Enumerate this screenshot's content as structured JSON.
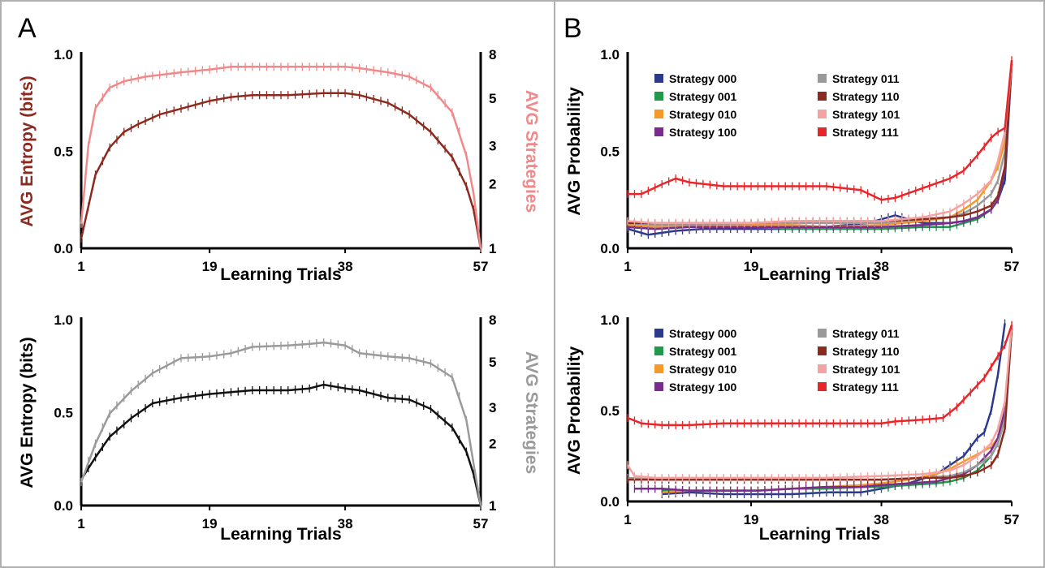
{
  "panel_labels": [
    "A",
    "B"
  ],
  "colors": {
    "entropy_red": "#8b2a1f",
    "strategies_pink": "#f08a8a",
    "entropy_black": "#111111",
    "strategies_gray": "#9a9a9a",
    "border": "#b0b0b0"
  },
  "chart_data": [
    {
      "type": "line",
      "panel": "A",
      "xlabel": "Learning Trials",
      "ylabel": "AVG Entropy (bits)",
      "ylabel_right": "AVG Strategies",
      "xlim": [
        1,
        57
      ],
      "ylim": [
        0,
        1
      ],
      "ylim_right": [
        1,
        8
      ],
      "right_scale": "log2",
      "x_ticks": [
        "1",
        "19",
        "38",
        "57"
      ],
      "y_ticks": [
        "0.0",
        "0.5",
        "1.0"
      ],
      "y_right_ticks": [
        "1",
        "2",
        "3",
        "5",
        "8"
      ],
      "error_bars": true,
      "series": [
        {
          "axis": "left",
          "color": "#8b2a1f",
          "x": [
            1,
            3,
            5,
            7,
            9,
            12,
            15,
            19,
            22,
            25,
            30,
            35,
            38,
            40,
            44,
            47,
            50,
            53,
            55,
            56,
            57
          ],
          "y": [
            0.05,
            0.38,
            0.52,
            0.6,
            0.64,
            0.69,
            0.72,
            0.76,
            0.78,
            0.79,
            0.79,
            0.8,
            0.8,
            0.79,
            0.75,
            0.69,
            0.6,
            0.47,
            0.32,
            0.2,
            0.0
          ]
        },
        {
          "axis": "right",
          "color": "#f08a8a",
          "x": [
            1,
            2,
            3,
            5,
            7,
            10,
            15,
            19,
            22,
            25,
            30,
            35,
            38,
            40,
            44,
            47,
            50,
            53,
            55,
            56,
            57
          ],
          "y": [
            1.3,
            3.0,
            4.5,
            5.6,
            6.0,
            6.3,
            6.6,
            6.8,
            7.0,
            7.0,
            7.0,
            7.0,
            7.0,
            6.9,
            6.6,
            6.3,
            5.6,
            4.3,
            2.7,
            1.8,
            1.0
          ]
        }
      ]
    },
    {
      "type": "line",
      "panel": "A-bottom",
      "xlabel": "Learning Trials",
      "ylabel": "AVG Entropy (bits)",
      "ylabel_right": "AVG Strategies",
      "xlim": [
        1,
        57
      ],
      "ylim": [
        0,
        1
      ],
      "ylim_right": [
        1,
        8
      ],
      "right_scale": "log2",
      "x_ticks": [
        "1",
        "19",
        "38",
        "57"
      ],
      "y_ticks": [
        "0.0",
        "0.5",
        "1.0"
      ],
      "y_right_ticks": [
        "1",
        "2",
        "3",
        "5",
        "8"
      ],
      "error_bars": true,
      "series": [
        {
          "axis": "left",
          "color": "#111111",
          "x": [
            1,
            3,
            5,
            8,
            11,
            15,
            19,
            22,
            25,
            30,
            33,
            35,
            38,
            40,
            44,
            47,
            50,
            53,
            55,
            56,
            57
          ],
          "y": [
            0.14,
            0.26,
            0.37,
            0.47,
            0.55,
            0.58,
            0.6,
            0.61,
            0.62,
            0.62,
            0.63,
            0.65,
            0.63,
            0.62,
            0.58,
            0.57,
            0.52,
            0.42,
            0.29,
            0.17,
            0.0
          ]
        },
        {
          "axis": "right",
          "color": "#9a9a9a",
          "x": [
            1,
            3,
            5,
            8,
            11,
            15,
            19,
            22,
            25,
            30,
            33,
            35,
            38,
            40,
            44,
            47,
            50,
            53,
            55,
            56,
            57
          ],
          "y": [
            1.3,
            2.0,
            2.8,
            3.6,
            4.4,
            5.2,
            5.3,
            5.5,
            5.9,
            6.0,
            6.1,
            6.2,
            6.0,
            5.5,
            5.3,
            5.2,
            4.9,
            4.2,
            2.6,
            1.6,
            1.0
          ]
        }
      ]
    },
    {
      "type": "line",
      "panel": "B",
      "xlabel": "Learning Trials",
      "ylabel": "AVG Probability",
      "xlim": [
        1,
        57
      ],
      "ylim": [
        0,
        1
      ],
      "x_ticks": [
        "1",
        "19",
        "38",
        "57"
      ],
      "y_ticks": [
        "0.0",
        "0.5",
        "1.0"
      ],
      "error_bars": true,
      "series": [
        {
          "name": "Strategy 000",
          "color": "#2b3a8c",
          "x": [
            1,
            4,
            8,
            12,
            19,
            25,
            30,
            36,
            40,
            44,
            48,
            50,
            52,
            54,
            55,
            56,
            57
          ],
          "y": [
            0.1,
            0.07,
            0.09,
            0.1,
            0.1,
            0.1,
            0.11,
            0.13,
            0.17,
            0.13,
            0.13,
            0.14,
            0.16,
            0.2,
            0.25,
            0.35,
            0.95
          ]
        },
        {
          "name": "Strategy 001",
          "color": "#1e9a4a",
          "x": [
            1,
            5,
            10,
            19,
            25,
            30,
            38,
            44,
            48,
            50,
            52,
            54,
            55,
            56,
            57
          ],
          "y": [
            0.11,
            0.1,
            0.11,
            0.11,
            0.1,
            0.1,
            0.1,
            0.11,
            0.11,
            0.13,
            0.15,
            0.2,
            0.25,
            0.4,
            0.95
          ]
        },
        {
          "name": "Strategy 010",
          "color": "#f59a2a",
          "x": [
            1,
            5,
            10,
            19,
            25,
            30,
            38,
            44,
            48,
            50,
            52,
            54,
            55,
            56,
            57
          ],
          "y": [
            0.12,
            0.11,
            0.11,
            0.12,
            0.12,
            0.11,
            0.12,
            0.14,
            0.16,
            0.2,
            0.25,
            0.35,
            0.42,
            0.55,
            0.95
          ]
        },
        {
          "name": "Strategy 100",
          "color": "#7a2c8c",
          "x": [
            1,
            5,
            10,
            19,
            25,
            30,
            38,
            44,
            48,
            50,
            52,
            54,
            55,
            56,
            57
          ],
          "y": [
            0.11,
            0.1,
            0.11,
            0.11,
            0.11,
            0.11,
            0.11,
            0.12,
            0.13,
            0.14,
            0.16,
            0.2,
            0.25,
            0.4,
            0.95
          ]
        },
        {
          "name": "Strategy 011",
          "color": "#9a9a9a",
          "x": [
            1,
            5,
            10,
            19,
            25,
            30,
            38,
            44,
            48,
            50,
            52,
            54,
            55,
            56,
            57
          ],
          "y": [
            0.13,
            0.12,
            0.12,
            0.13,
            0.13,
            0.13,
            0.13,
            0.15,
            0.16,
            0.18,
            0.22,
            0.28,
            0.35,
            0.5,
            0.95
          ]
        },
        {
          "name": "Strategy 110",
          "color": "#8b2a1f",
          "x": [
            1,
            5,
            10,
            19,
            25,
            30,
            38,
            44,
            48,
            50,
            52,
            54,
            55,
            56,
            57
          ],
          "y": [
            0.13,
            0.13,
            0.13,
            0.13,
            0.14,
            0.14,
            0.14,
            0.15,
            0.16,
            0.17,
            0.19,
            0.22,
            0.27,
            0.42,
            0.95
          ]
        },
        {
          "name": "Strategy 101",
          "color": "#f4a3a3",
          "x": [
            1,
            5,
            10,
            19,
            25,
            30,
            38,
            44,
            48,
            50,
            52,
            54,
            55,
            56,
            57
          ],
          "y": [
            0.14,
            0.13,
            0.13,
            0.13,
            0.14,
            0.14,
            0.14,
            0.16,
            0.19,
            0.23,
            0.28,
            0.35,
            0.45,
            0.6,
            0.95
          ]
        },
        {
          "name": "Strategy 111",
          "color": "#e8262a",
          "x": [
            1,
            3,
            6,
            8,
            10,
            15,
            19,
            25,
            30,
            35,
            38,
            40,
            44,
            48,
            50,
            52,
            54,
            55,
            56,
            57
          ],
          "y": [
            0.28,
            0.28,
            0.33,
            0.36,
            0.34,
            0.32,
            0.32,
            0.32,
            0.32,
            0.3,
            0.25,
            0.26,
            0.31,
            0.36,
            0.4,
            0.48,
            0.57,
            0.6,
            0.62,
            0.97
          ]
        }
      ]
    },
    {
      "type": "line",
      "panel": "B-bottom",
      "xlabel": "Learning Trials",
      "ylabel": "AVG Probability",
      "xlim": [
        1,
        57
      ],
      "ylim": [
        0,
        1
      ],
      "x_ticks": [
        "1",
        "19",
        "38",
        "57"
      ],
      "y_ticks": [
        "0.0",
        "0.5",
        "1.0"
      ],
      "error_bars": true,
      "series": [
        {
          "name": "Strategy 000",
          "color": "#2b3a8c",
          "x": [
            6,
            10,
            15,
            20,
            25,
            30,
            35,
            38,
            42,
            46,
            48,
            50,
            52,
            53,
            54,
            55,
            56
          ],
          "y": [
            0.04,
            0.05,
            0.04,
            0.04,
            0.04,
            0.05,
            0.05,
            0.07,
            0.1,
            0.15,
            0.2,
            0.25,
            0.35,
            0.38,
            0.5,
            0.7,
            0.98
          ]
        },
        {
          "name": "Strategy 001",
          "color": "#1e9a4a",
          "x": [
            6,
            10,
            15,
            20,
            25,
            30,
            35,
            38,
            42,
            46,
            48,
            50,
            52,
            54,
            55,
            56,
            57
          ],
          "y": [
            0.06,
            0.06,
            0.06,
            0.06,
            0.07,
            0.07,
            0.08,
            0.08,
            0.09,
            0.1,
            0.11,
            0.13,
            0.17,
            0.25,
            0.32,
            0.45,
            0.95
          ]
        },
        {
          "name": "Strategy 010",
          "color": "#f59a2a",
          "x": [
            6,
            10,
            15,
            20,
            25,
            30,
            35,
            38,
            42,
            46,
            48,
            50,
            52,
            54,
            55,
            56,
            57
          ],
          "y": [
            0.05,
            0.06,
            0.06,
            0.06,
            0.07,
            0.08,
            0.09,
            0.1,
            0.12,
            0.15,
            0.18,
            0.22,
            0.26,
            0.3,
            0.35,
            0.5,
            0.95
          ]
        },
        {
          "name": "Strategy 100",
          "color": "#7a2c8c",
          "x": [
            2,
            6,
            10,
            15,
            20,
            25,
            30,
            35,
            38,
            42,
            46,
            48,
            50,
            52,
            54,
            55,
            56,
            57
          ],
          "y": [
            0.07,
            0.07,
            0.06,
            0.06,
            0.06,
            0.07,
            0.08,
            0.08,
            0.09,
            0.1,
            0.11,
            0.13,
            0.15,
            0.2,
            0.28,
            0.35,
            0.5,
            0.95
          ]
        },
        {
          "name": "Strategy 011",
          "color": "#9a9a9a",
          "x": [
            1,
            5,
            10,
            19,
            25,
            30,
            38,
            44,
            48,
            50,
            52,
            54,
            55,
            56,
            57
          ],
          "y": [
            0.13,
            0.12,
            0.12,
            0.12,
            0.12,
            0.12,
            0.12,
            0.13,
            0.14,
            0.16,
            0.2,
            0.25,
            0.32,
            0.45,
            0.95
          ]
        },
        {
          "name": "Strategy 110",
          "color": "#8b2a1f",
          "x": [
            1,
            5,
            10,
            19,
            25,
            30,
            38,
            44,
            48,
            50,
            52,
            54,
            55,
            56,
            57
          ],
          "y": [
            0.12,
            0.12,
            0.12,
            0.12,
            0.12,
            0.12,
            0.12,
            0.13,
            0.13,
            0.14,
            0.16,
            0.2,
            0.26,
            0.4,
            0.95
          ]
        },
        {
          "name": "Strategy 101",
          "color": "#f4a3a3",
          "x": [
            1,
            2,
            5,
            10,
            19,
            25,
            30,
            38,
            44,
            48,
            50,
            52,
            54,
            55,
            56,
            57
          ],
          "y": [
            0.2,
            0.14,
            0.13,
            0.13,
            0.13,
            0.13,
            0.13,
            0.14,
            0.15,
            0.17,
            0.2,
            0.25,
            0.32,
            0.4,
            0.55,
            0.97
          ]
        },
        {
          "name": "Strategy 111",
          "color": "#e8262a",
          "x": [
            1,
            3,
            6,
            10,
            15,
            19,
            25,
            30,
            35,
            38,
            40,
            44,
            47,
            49,
            51,
            53,
            55,
            56,
            57
          ],
          "y": [
            0.46,
            0.43,
            0.42,
            0.42,
            0.43,
            0.43,
            0.43,
            0.43,
            0.43,
            0.43,
            0.44,
            0.45,
            0.46,
            0.52,
            0.6,
            0.68,
            0.8,
            0.86,
            0.97
          ]
        }
      ]
    }
  ]
}
